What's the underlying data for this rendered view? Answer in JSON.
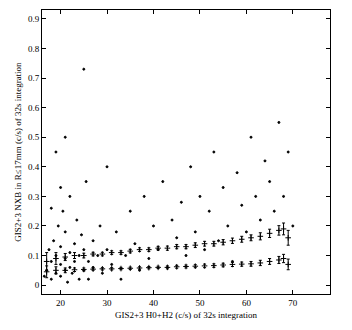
{
  "chart_data": {
    "type": "scatter",
    "xlabel": "GIS2+3 H0+H2 (c/s) of 32s integration",
    "ylabel": "GIS2+3 NXB in R≤17mm (c/s) of 32s integration",
    "xlim": [
      16,
      78
    ],
    "ylim": [
      -0.03,
      0.93
    ],
    "xticks": [
      20,
      30,
      40,
      50,
      60,
      70
    ],
    "yticks": [
      0,
      0.1,
      0.2,
      0.3,
      0.4,
      0.5,
      0.6,
      0.7,
      0.8,
      0.9
    ],
    "grid": false,
    "series": [
      {
        "type": "scatter",
        "marker": "dot",
        "color": "#000000",
        "x": [
          17,
          17.5,
          18,
          18,
          18.5,
          19,
          19,
          19.5,
          20,
          20,
          20,
          20.5,
          21,
          21,
          21,
          21.5,
          22,
          22,
          22,
          22.5,
          23,
          23,
          23.5,
          24,
          24,
          24.5,
          25,
          25,
          25.5,
          26,
          26,
          27,
          27,
          28,
          28.5,
          29,
          30,
          30,
          31,
          32,
          33,
          34,
          35,
          36,
          37,
          38,
          39,
          40,
          41,
          42,
          43,
          44,
          45,
          46,
          47,
          48,
          49,
          50,
          51,
          52,
          53,
          54,
          55,
          56,
          57,
          58,
          59,
          60,
          61,
          62,
          63,
          64,
          65,
          66,
          67,
          68,
          69,
          70,
          25,
          19,
          21,
          16.5,
          18,
          20
        ],
        "values": [
          0.05,
          0.12,
          0.02,
          0.08,
          0.15,
          0.04,
          0.1,
          0.2,
          0.03,
          0.07,
          0.13,
          0.25,
          0.05,
          0.09,
          0.18,
          0.01,
          0.06,
          0.11,
          0.3,
          0.04,
          0.08,
          0.14,
          0.22,
          0.02,
          0.1,
          0.17,
          0.05,
          0.12,
          0.35,
          0.08,
          0.02,
          0.15,
          0.06,
          0.1,
          0.2,
          0.04,
          0.12,
          0.4,
          0.07,
          0.18,
          0.02,
          0.1,
          0.25,
          0.14,
          0.05,
          0.3,
          0.09,
          0.2,
          0.12,
          0.35,
          0.06,
          0.22,
          0.16,
          0.28,
          0.1,
          0.4,
          0.18,
          0.3,
          0.12,
          0.25,
          0.45,
          0.15,
          0.33,
          0.2,
          0.08,
          0.38,
          0.27,
          0.18,
          0.5,
          0.3,
          0.22,
          0.42,
          0.35,
          0.25,
          0.55,
          0.3,
          0.45,
          0.2,
          0.73,
          0.45,
          0.5,
          0.03,
          0.26,
          0.33
        ]
      },
      {
        "type": "errorbar",
        "marker": "cross",
        "color": "#000000",
        "x": [
          17,
          19,
          21,
          23,
          25,
          27,
          29,
          31,
          33,
          35,
          37,
          39,
          41,
          43,
          45,
          47,
          49,
          51,
          53,
          55,
          57,
          59,
          61,
          63,
          65,
          67,
          68,
          69
        ],
        "values": [
          0.08,
          0.09,
          0.095,
          0.1,
          0.1,
          0.105,
          0.105,
          0.11,
          0.11,
          0.115,
          0.12,
          0.12,
          0.125,
          0.125,
          0.13,
          0.13,
          0.135,
          0.14,
          0.14,
          0.145,
          0.15,
          0.155,
          0.16,
          0.165,
          0.175,
          0.185,
          0.19,
          0.16
        ],
        "error": [
          0.03,
          0.02,
          0.012,
          0.01,
          0.008,
          0.006,
          0.006,
          0.006,
          0.006,
          0.006,
          0.006,
          0.006,
          0.006,
          0.007,
          0.007,
          0.007,
          0.008,
          0.008,
          0.008,
          0.009,
          0.009,
          0.01,
          0.01,
          0.012,
          0.014,
          0.016,
          0.02,
          0.025
        ]
      },
      {
        "type": "errorbar",
        "marker": "cross",
        "color": "#000000",
        "x": [
          17,
          19,
          21,
          23,
          25,
          27,
          29,
          31,
          33,
          35,
          37,
          39,
          41,
          43,
          45,
          47,
          49,
          51,
          53,
          55,
          57,
          59,
          61,
          63,
          65,
          67,
          68,
          69
        ],
        "values": [
          0.045,
          0.05,
          0.05,
          0.052,
          0.053,
          0.054,
          0.055,
          0.055,
          0.056,
          0.057,
          0.058,
          0.059,
          0.06,
          0.06,
          0.062,
          0.063,
          0.064,
          0.065,
          0.066,
          0.068,
          0.07,
          0.071,
          0.072,
          0.075,
          0.08,
          0.085,
          0.09,
          0.07
        ],
        "error": [
          0.02,
          0.012,
          0.008,
          0.006,
          0.005,
          0.004,
          0.004,
          0.004,
          0.004,
          0.004,
          0.004,
          0.004,
          0.004,
          0.005,
          0.005,
          0.005,
          0.005,
          0.006,
          0.006,
          0.006,
          0.007,
          0.007,
          0.008,
          0.009,
          0.01,
          0.012,
          0.014,
          0.018
        ]
      }
    ]
  }
}
